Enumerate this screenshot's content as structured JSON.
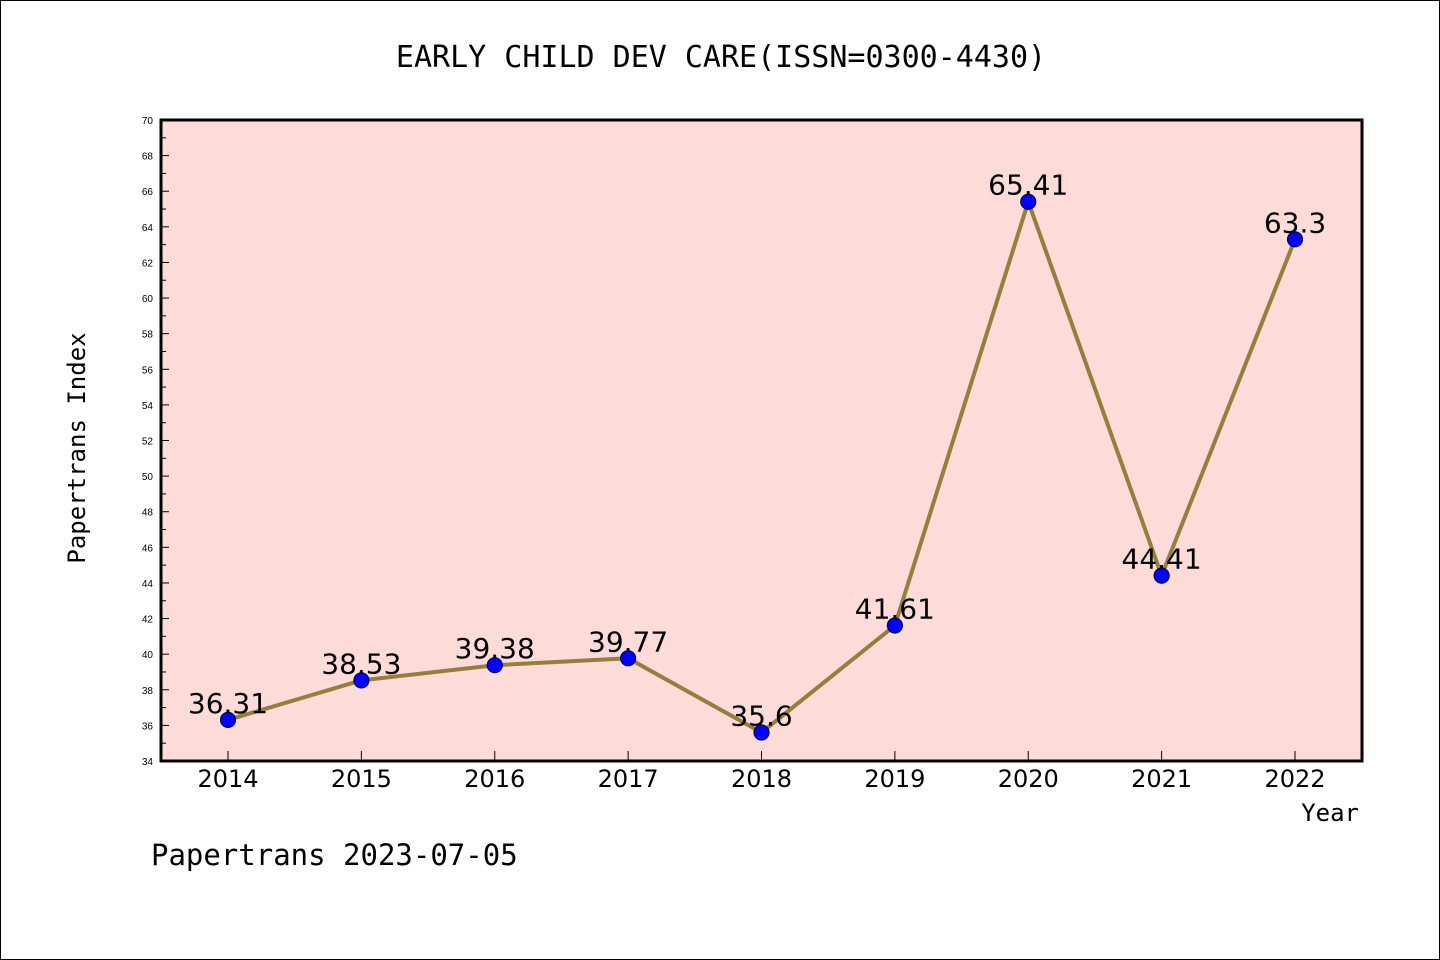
{
  "chart_data": {
    "type": "line",
    "title": "EARLY CHILD DEV CARE(ISSN=0300-4430)",
    "xlabel": "Year",
    "ylabel": "Papertrans Index",
    "footer": "Papertrans 2023-07-05",
    "categories": [
      "2014",
      "2015",
      "2016",
      "2017",
      "2018",
      "2019",
      "2020",
      "2021",
      "2022"
    ],
    "values": [
      36.31,
      38.53,
      39.38,
      39.77,
      35.6,
      41.61,
      65.41,
      44.41,
      63.3
    ],
    "data_labels": [
      "36.31",
      "38.53",
      "39.38",
      "39.77",
      "35.6",
      "41.61",
      "65.41",
      "44.41",
      "63.3"
    ],
    "ylim": [
      34,
      70
    ],
    "y_ticks": [
      "34",
      "36",
      "38",
      "40",
      "42",
      "44",
      "46",
      "48",
      "50",
      "52",
      "54",
      "56",
      "58",
      "60",
      "62",
      "64",
      "66",
      "68",
      "70"
    ],
    "grid": false,
    "legend": "none",
    "colors": {
      "plot_background": "#fddbd8",
      "line": "#94803c",
      "marker_fill": "#0000ff",
      "marker_edge": "#00005a"
    }
  }
}
